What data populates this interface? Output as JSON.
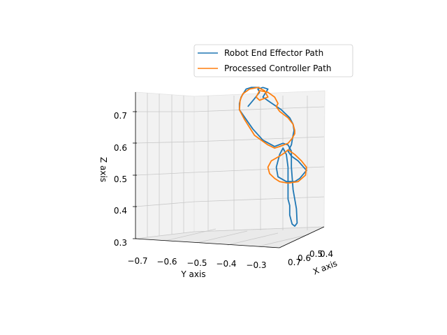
{
  "chart_data": {
    "type": "line",
    "projection": "3d",
    "title": "",
    "xlabel": "X axis",
    "ylabel": "Y axis",
    "zlabel": "Z axis",
    "x_ticks": [
      "0.7",
      "0.6",
      "0.5",
      "0.4"
    ],
    "y_ticks": [
      "−0.7",
      "−0.6",
      "−0.5",
      "−0.4",
      "−0.3"
    ],
    "z_ticks": [
      "0.3",
      "0.4",
      "0.5",
      "0.6",
      "0.7"
    ],
    "ylim": [
      -0.72,
      -0.24
    ],
    "zlim": [
      0.29,
      0.76
    ],
    "grid": true,
    "legend_position": "upper-right",
    "series": [
      {
        "name": "Robot End Effector Path",
        "color": "#1f77b4",
        "points": [
          [
            -0.49,
            0.69
          ],
          [
            -0.47,
            0.715
          ],
          [
            -0.455,
            0.735
          ],
          [
            -0.46,
            0.745
          ],
          [
            -0.445,
            0.75
          ],
          [
            -0.43,
            0.745
          ],
          [
            -0.445,
            0.72
          ],
          [
            -0.425,
            0.705
          ],
          [
            -0.39,
            0.68
          ],
          [
            -0.365,
            0.655
          ],
          [
            -0.355,
            0.635
          ],
          [
            -0.352,
            0.615
          ],
          [
            -0.355,
            0.6
          ],
          [
            -0.36,
            0.57
          ],
          [
            -0.37,
            0.55
          ],
          [
            -0.36,
            0.535
          ],
          [
            -0.34,
            0.52
          ],
          [
            -0.315,
            0.49
          ],
          [
            -0.335,
            0.465
          ],
          [
            -0.35,
            0.455
          ],
          [
            -0.375,
            0.455
          ],
          [
            -0.4,
            0.47
          ],
          [
            -0.405,
            0.5
          ],
          [
            -0.395,
            0.54
          ],
          [
            -0.385,
            0.56
          ],
          [
            -0.375,
            0.54
          ],
          [
            -0.37,
            0.5
          ],
          [
            -0.37,
            0.46
          ],
          [
            -0.37,
            0.43
          ],
          [
            -0.37,
            0.4
          ],
          [
            -0.365,
            0.38
          ],
          [
            -0.365,
            0.35
          ],
          [
            -0.358,
            0.322
          ],
          [
            -0.35,
            0.315
          ],
          [
            -0.343,
            0.325
          ],
          [
            -0.345,
            0.37
          ],
          [
            -0.355,
            0.43
          ],
          [
            -0.36,
            0.5
          ],
          [
            -0.36,
            0.55
          ],
          [
            -0.37,
            0.57
          ],
          [
            -0.385,
            0.575
          ],
          [
            -0.41,
            0.565
          ],
          [
            -0.445,
            0.585
          ],
          [
            -0.475,
            0.62
          ],
          [
            -0.515,
            0.68
          ],
          [
            -0.515,
            0.7
          ],
          [
            -0.51,
            0.72
          ],
          [
            -0.495,
            0.745
          ],
          [
            -0.48,
            0.75
          ],
          [
            -0.455,
            0.75
          ]
        ]
      },
      {
        "name": "Processed Controller Path",
        "color": "#ff7f0e",
        "points": [
          [
            -0.515,
            0.68
          ],
          [
            -0.513,
            0.71
          ],
          [
            -0.505,
            0.73
          ],
          [
            -0.485,
            0.745
          ],
          [
            -0.46,
            0.75
          ],
          [
            -0.44,
            0.74
          ],
          [
            -0.43,
            0.72
          ],
          [
            -0.455,
            0.71
          ],
          [
            -0.465,
            0.72
          ],
          [
            -0.455,
            0.74
          ],
          [
            -0.43,
            0.735
          ],
          [
            -0.41,
            0.72
          ],
          [
            -0.4,
            0.7
          ],
          [
            -0.405,
            0.69
          ],
          [
            -0.395,
            0.675
          ],
          [
            -0.37,
            0.655
          ],
          [
            -0.355,
            0.635
          ],
          [
            -0.35,
            0.615
          ],
          [
            -0.35,
            0.605
          ],
          [
            -0.358,
            0.59
          ],
          [
            -0.37,
            0.575
          ],
          [
            -0.395,
            0.565
          ],
          [
            -0.41,
            0.56
          ],
          [
            -0.43,
            0.57
          ],
          [
            -0.47,
            0.6
          ],
          [
            -0.5,
            0.65
          ],
          [
            -0.515,
            0.68
          ]
        ]
      },
      {
        "name": "Processed Controller Path",
        "color": "#ff7f0e",
        "points": [
          [
            -0.37,
            0.555
          ],
          [
            -0.35,
            0.54
          ],
          [
            -0.33,
            0.52
          ],
          [
            -0.315,
            0.5
          ],
          [
            -0.318,
            0.475
          ],
          [
            -0.34,
            0.455
          ],
          [
            -0.37,
            0.45
          ],
          [
            -0.395,
            0.455
          ],
          [
            -0.41,
            0.465
          ],
          [
            -0.425,
            0.48
          ],
          [
            -0.43,
            0.5
          ],
          [
            -0.42,
            0.52
          ],
          [
            -0.395,
            0.535
          ],
          [
            -0.38,
            0.545
          ],
          [
            -0.37,
            0.555
          ]
        ]
      }
    ]
  }
}
